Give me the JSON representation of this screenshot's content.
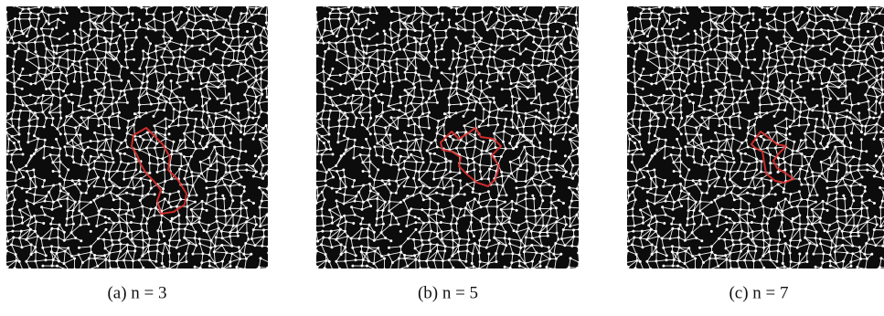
{
  "figure": {
    "panels": [
      {
        "caption": "(a) n = 3"
      },
      {
        "caption": "(b) n = 5"
      },
      {
        "caption": "(c) n = 7"
      }
    ]
  }
}
